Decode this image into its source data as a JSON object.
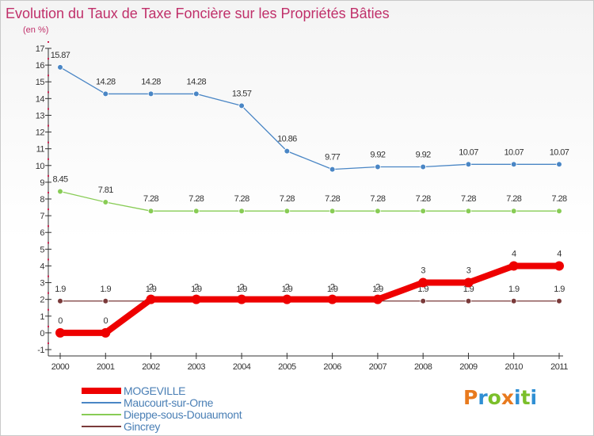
{
  "chart_data": {
    "type": "line",
    "title": "Evolution du Taux de Taxe Foncière sur les Propriétés Bâties",
    "subtitle": "(en %)",
    "xlabel": "",
    "ylabel": "",
    "x": [
      "2000",
      "2001",
      "2002",
      "2003",
      "2004",
      "2005",
      "2006",
      "2007",
      "2008",
      "2009",
      "2010",
      "2011"
    ],
    "ylim": [
      -1,
      17
    ],
    "yticks": [
      -1,
      0,
      1,
      2,
      3,
      4,
      5,
      6,
      7,
      8,
      9,
      10,
      11,
      12,
      13,
      14,
      15,
      16,
      17
    ],
    "grid": false,
    "legend_position": "bottom-left",
    "series": [
      {
        "name": "MOGEVILLE",
        "color": "#ee0000",
        "values": [
          0,
          0,
          2,
          2,
          2,
          2,
          2,
          2,
          3,
          3,
          4,
          4
        ],
        "labels": [
          "0",
          "0",
          "2",
          "2",
          "2",
          "2",
          "2",
          "2",
          "3",
          "3",
          "4",
          "4"
        ]
      },
      {
        "name": "Maucourt-sur-Orne",
        "color": "#4a86c5",
        "values": [
          15.87,
          14.28,
          14.28,
          14.28,
          13.57,
          10.86,
          9.77,
          9.92,
          9.92,
          10.07,
          10.07,
          10.07
        ],
        "labels": [
          "15.87",
          "14.28",
          "14.28",
          "14.28",
          "13.57",
          "10.86",
          "9.77",
          "9.92",
          "9.92",
          "10.07",
          "10.07",
          "10.07"
        ]
      },
      {
        "name": "Dieppe-sous-Douaumont",
        "color": "#88cc55",
        "values": [
          8.45,
          7.81,
          7.28,
          7.28,
          7.28,
          7.28,
          7.28,
          7.28,
          7.28,
          7.28,
          7.28,
          7.28
        ],
        "labels": [
          "8.45",
          "7.81",
          "7.28",
          "7.28",
          "7.28",
          "7.28",
          "7.28",
          "7.28",
          "7.28",
          "7.28",
          "7.28",
          "7.28"
        ]
      },
      {
        "name": "Gincrey",
        "color": "#7a3a3a",
        "values": [
          1.9,
          1.9,
          1.9,
          1.9,
          1.9,
          1.9,
          1.9,
          1.9,
          1.9,
          1.9,
          1.9,
          1.9
        ],
        "labels": [
          "1.9",
          "1.9",
          "1.9",
          "1.9",
          "1.9",
          "1.9",
          "1.9",
          "1.9",
          "1.9",
          "1.9",
          "1.9",
          "1.9"
        ]
      }
    ]
  },
  "logo": {
    "text": "Proxiti",
    "colors": [
      "#e87a1e",
      "#2f8fd4",
      "#7bbf2a",
      "#e87a1e",
      "#2f8fd4",
      "#7bbf2a",
      "#2f8fd4"
    ]
  }
}
